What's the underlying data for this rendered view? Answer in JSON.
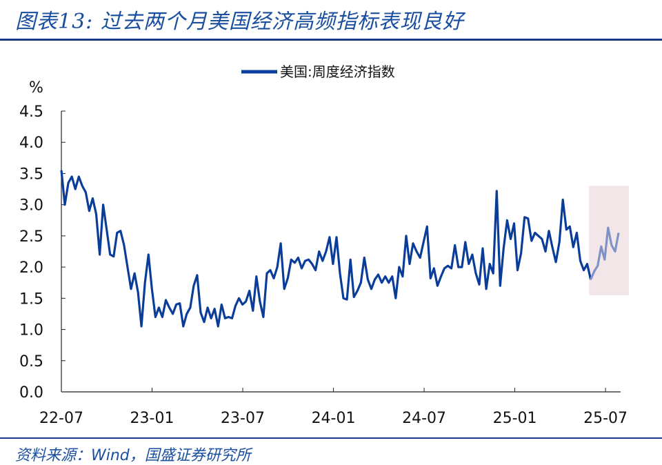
{
  "header": {
    "title": "图表13:  过去两个月美国经济高频指标表现良好"
  },
  "footer": {
    "source": "资料来源：Wind，国盛证券研究所"
  },
  "colors": {
    "series": "#0a3d9a",
    "highlight_line": "#7f93c6",
    "highlight_box": "#f3e6e8",
    "rule": "#1a3a8a"
  },
  "chart_data": {
    "type": "line",
    "title": "",
    "ylabel": "%",
    "xlabel": "",
    "ylim": [
      0.0,
      4.5
    ],
    "yticks": [
      "0.0",
      "0.5",
      "1.0",
      "1.5",
      "2.0",
      "2.5",
      "3.0",
      "3.5",
      "4.0",
      "4.5"
    ],
    "xticks": [
      "22-07",
      "23-01",
      "23-07",
      "24-01",
      "24-07",
      "25-01",
      "25-07"
    ],
    "x_start": "2022-07",
    "x_end": "2025-08",
    "legend": {
      "position": "top-center"
    },
    "highlight_region": {
      "from": "2025-06",
      "to": "2025-08",
      "ymin": 1.55,
      "ymax": 3.3
    },
    "series": [
      {
        "name": "美国:周度经济指数",
        "color": "#0a3d9a",
        "values": [
          3.55,
          3.0,
          3.35,
          3.45,
          3.25,
          3.45,
          3.3,
          3.2,
          2.9,
          3.1,
          2.85,
          2.2,
          3.0,
          2.6,
          2.2,
          2.17,
          2.55,
          2.58,
          2.35,
          2.0,
          1.65,
          1.9,
          1.6,
          1.05,
          1.75,
          2.2,
          1.65,
          1.2,
          1.35,
          1.2,
          1.47,
          1.35,
          1.25,
          1.4,
          1.42,
          1.05,
          1.25,
          1.35,
          1.7,
          1.87,
          1.27,
          1.12,
          1.35,
          1.18,
          1.33,
          1.05,
          1.4,
          1.18,
          1.2,
          1.18,
          1.38,
          1.5,
          1.4,
          1.45,
          1.62,
          1.3,
          1.85,
          1.45,
          1.2,
          1.9,
          1.95,
          1.82,
          2.0,
          2.38,
          1.65,
          1.82,
          2.12,
          2.07,
          2.15,
          1.98,
          2.1,
          2.12,
          2.05,
          1.95,
          2.25,
          2.1,
          2.25,
          2.48,
          2.05,
          2.48,
          1.9,
          1.5,
          1.48,
          2.12,
          1.52,
          1.62,
          1.75,
          2.15,
          1.8,
          1.65,
          1.8,
          1.88,
          1.75,
          1.85,
          1.75,
          1.85,
          1.5,
          2.0,
          1.85,
          2.5,
          2.05,
          2.38,
          2.25,
          2.15,
          2.4,
          2.65,
          1.82,
          1.98,
          1.7,
          1.85,
          1.98,
          2.02,
          1.98,
          2.35,
          2.0,
          2.0,
          2.4,
          2.05,
          2.2,
          1.9,
          1.72,
          2.3,
          1.65,
          2.05,
          1.9,
          3.22,
          1.7,
          2.3,
          2.75,
          2.45,
          2.7,
          1.95,
          2.22,
          2.8,
          2.78,
          2.42,
          2.55,
          2.5,
          2.45,
          2.25,
          2.58,
          2.32,
          2.08,
          2.4,
          3.08,
          2.6,
          2.65,
          2.32,
          2.55,
          2.1,
          1.95,
          2.05,
          1.8,
          1.93,
          2.02,
          2.33,
          2.12,
          2.63,
          2.35,
          2.25,
          2.55
        ]
      }
    ]
  }
}
